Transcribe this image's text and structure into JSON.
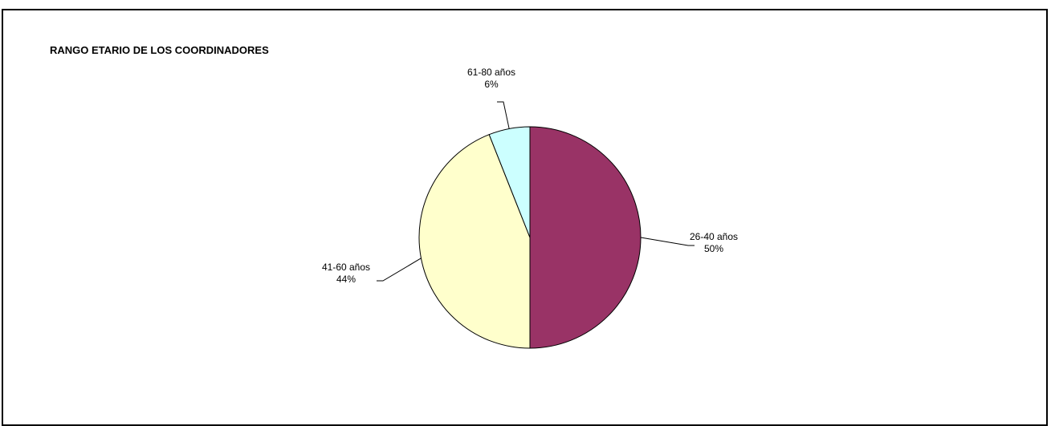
{
  "chart_data": {
    "type": "pie",
    "title": "RANGO ETARIO DE LOS COORDINADORES",
    "categories": [
      "26-40 años",
      "41-60 años",
      "61-80 años"
    ],
    "values": [
      50,
      44,
      6
    ],
    "value_labels": [
      "50%",
      "44%",
      "6%"
    ],
    "colors": [
      "#993366",
      "#FFFFCC",
      "#CCFFFF"
    ],
    "start_angle_deg": 0,
    "direction": "clockwise",
    "legend": "none"
  }
}
